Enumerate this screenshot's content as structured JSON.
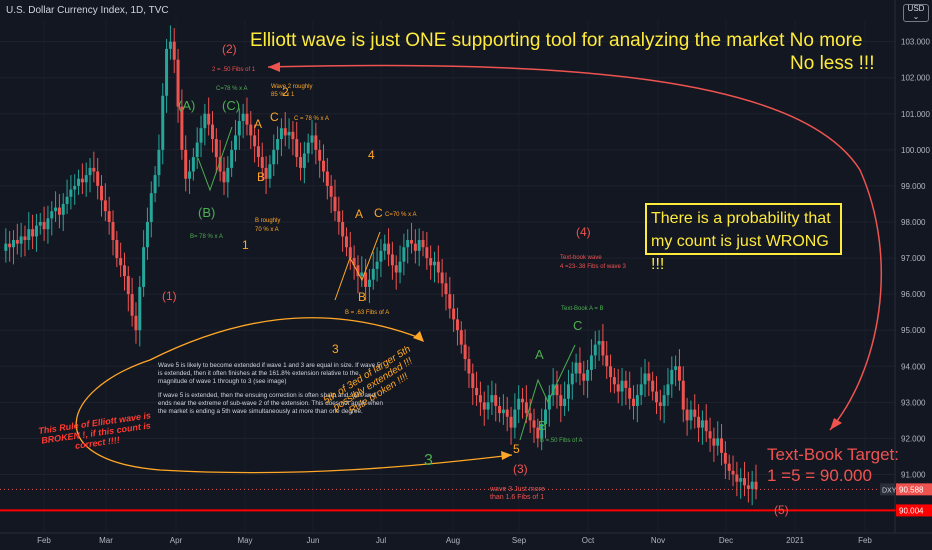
{
  "symbol_title": "U.S. Dollar Currency Index, 1D, TVC",
  "currency_label": "USD",
  "headline_1": "Elliott wave is just ONE supporting tool for analyzing the market  No more",
  "headline_2": "No less   !!!",
  "probability_note_1": "There is a probability that",
  "probability_note_2": "my count is just WRONG !!!",
  "target_line_1": "Text-Book Target:",
  "target_line_2": "1 =5 = 90.000",
  "rule_broken_note": "This Rule of Elliott wave is BROKEN !, if this count is correct !!!!",
  "fifth_note": "5th of 3ed of larger 5th possibly extended !!! Rule broken !!!!",
  "explanation_1": "Wave 5 is likely to become extended if wave 1 and 3 are equal in size. If wave 5 is extended, then it often finishes at the 161.8% extension relative to the magnitude of wave 1 through to 3 (see image)",
  "explanation_2": "If wave 5 is extended, then the ensuing correction is often sharp and swift and ends near the extreme of sub-wave 2 of the extension. This does not apply when the market is ending a 5th wave simultaneously at more than one degree.",
  "colors": {
    "background": "#131722",
    "up": "#26a69a",
    "down": "#ef5350",
    "annot_orange": "#ffa726",
    "annot_green": "#4caf50",
    "annot_red": "#ef5350",
    "headline_yellow": "#ffeb3b"
  },
  "wave_labels": [
    {
      "id": "w1",
      "text": "(1)",
      "color": "red"
    },
    {
      "id": "w2",
      "text": "(2)",
      "color": "red"
    },
    {
      "id": "w2note",
      "text": "2 = .50 Fibs of 1",
      "color": "red"
    },
    {
      "id": "a1",
      "text": "(A)",
      "color": "green"
    },
    {
      "id": "c1",
      "text": "(C)",
      "color": "green"
    },
    {
      "id": "b1",
      "text": "(B)",
      "color": "green"
    },
    {
      "id": "c1note",
      "text": "C=78 % x A",
      "color": "green"
    },
    {
      "id": "b1note",
      "text": "B= 78 % x A",
      "color": "green"
    },
    {
      "id": "wave2rough",
      "text": "Wave 2 roughly",
      "color": "orange"
    },
    {
      "id": "wave2rough2",
      "text": "85 % x 1",
      "color": "orange"
    },
    {
      "id": "w2sub",
      "text": "2",
      "color": "orange"
    },
    {
      "id": "a2",
      "text": "A",
      "color": "orange"
    },
    {
      "id": "c2",
      "text": "C",
      "color": "orange"
    },
    {
      "id": "c2note",
      "text": "C = 78 % x A",
      "color": "orange"
    },
    {
      "id": "b2",
      "text": "B",
      "color": "orange"
    },
    {
      "id": "b2note",
      "text": "B roughly",
      "color": "orange"
    },
    {
      "id": "b2note2",
      "text": "70 % x A",
      "color": "orange"
    },
    {
      "id": "w1sub",
      "text": "1",
      "color": "orange"
    },
    {
      "id": "w4sub",
      "text": "4",
      "color": "orange"
    },
    {
      "id": "a3",
      "text": "A",
      "color": "orange"
    },
    {
      "id": "c3",
      "text": "C",
      "color": "orange"
    },
    {
      "id": "c3note",
      "text": "C=70 % x A",
      "color": "orange"
    },
    {
      "id": "b3",
      "text": "B",
      "color": "orange"
    },
    {
      "id": "b3note",
      "text": "B = .63 Fibs of A",
      "color": "orange"
    },
    {
      "id": "w3sub",
      "text": "3",
      "color": "orange"
    },
    {
      "id": "w4",
      "text": "(4)",
      "color": "red"
    },
    {
      "id": "w4note",
      "text": "Text-book wave",
      "color": "red"
    },
    {
      "id": "w4note2",
      "text": "4 =23-.38 Fibs of wave 3",
      "color": "red"
    },
    {
      "id": "tbnote",
      "text": "Text-Book A = B",
      "color": "green"
    },
    {
      "id": "c4",
      "text": "C",
      "color": "green"
    },
    {
      "id": "a4",
      "text": "A",
      "color": "green"
    },
    {
      "id": "b4",
      "text": "B",
      "color": "green"
    },
    {
      "id": "b4note",
      "text": "B =.50 Fibs of A",
      "color": "green"
    },
    {
      "id": "w5sub",
      "text": "5",
      "color": "orange"
    },
    {
      "id": "w3big",
      "text": "3",
      "color": "green"
    },
    {
      "id": "w3",
      "text": "(3)",
      "color": "red"
    },
    {
      "id": "w3note",
      "text": "wave 3 Just more",
      "color": "red"
    },
    {
      "id": "w3note2",
      "text": "than 1.6 Fibs of 1",
      "color": "red"
    },
    {
      "id": "w5",
      "text": "(5)",
      "color": "red"
    }
  ],
  "chart_data": {
    "type": "candlestick",
    "title": "U.S. Dollar Currency Index, 1D, TVC",
    "x_ticks": [
      "Feb",
      "Mar",
      "Apr",
      "May",
      "Jun",
      "Jul",
      "Aug",
      "Sep",
      "Oct",
      "Nov",
      "Dec",
      "2021",
      "Feb"
    ],
    "y_ticks": [
      103.0,
      102.0,
      101.0,
      100.0,
      99.0,
      98.0,
      97.0,
      96.0,
      95.0,
      94.0,
      93.0,
      92.0,
      91.0
    ],
    "ylim": [
      89.6,
      103.6
    ],
    "last_price": {
      "symbol": "DXY",
      "value": 90.588
    },
    "target_line": 90.004,
    "close_series": [
      97.2,
      97.4,
      97.3,
      97.5,
      97.4,
      97.6,
      97.5,
      97.8,
      97.6,
      97.9,
      98.0,
      97.8,
      98.1,
      98.3,
      98.4,
      98.2,
      98.5,
      98.7,
      98.9,
      99.0,
      99.2,
      99.1,
      99.3,
      99.5,
      99.4,
      99.0,
      98.6,
      98.3,
      98.0,
      97.5,
      97.0,
      96.8,
      96.5,
      96.0,
      95.4,
      95.0,
      96.2,
      97.3,
      98.0,
      98.8,
      99.3,
      100.0,
      101.5,
      102.8,
      103.0,
      102.5,
      101.2,
      100.0,
      99.2,
      99.4,
      99.8,
      100.2,
      100.6,
      101.0,
      100.7,
      100.3,
      99.8,
      99.4,
      99.1,
      99.5,
      100.0,
      100.4,
      100.8,
      101.0,
      100.7,
      100.4,
      100.1,
      99.8,
      99.5,
      99.2,
      99.6,
      100.0,
      100.3,
      100.6,
      100.4,
      100.5,
      100.3,
      99.8,
      99.5,
      99.9,
      100.2,
      100.4,
      100.0,
      99.7,
      99.4,
      99.0,
      98.7,
      98.3,
      98.0,
      97.6,
      97.3,
      97.0,
      96.8,
      96.5,
      96.6,
      96.2,
      96.4,
      96.7,
      96.9,
      97.2,
      97.4,
      97.1,
      96.8,
      96.6,
      96.9,
      97.3,
      97.5,
      97.4,
      97.2,
      97.5,
      97.3,
      97.0,
      96.8,
      96.9,
      96.6,
      96.3,
      96.0,
      95.6,
      95.3,
      95.0,
      94.6,
      94.2,
      93.8,
      93.4,
      93.2,
      93.0,
      92.8,
      93.0,
      93.2,
      92.9,
      92.7,
      92.8,
      92.6,
      92.3,
      92.8,
      93.1,
      93.0,
      92.7,
      92.5,
      92.3,
      92.0,
      92.4,
      92.8,
      93.2,
      93.5,
      93.2,
      92.9,
      93.1,
      93.5,
      93.8,
      94.1,
      93.8,
      93.6,
      93.9,
      94.3,
      94.6,
      94.7,
      94.3,
      94.0,
      93.7,
      93.5,
      93.3,
      93.6,
      93.4,
      93.1,
      92.9,
      93.2,
      93.5,
      93.8,
      93.6,
      93.3,
      93.0,
      92.9,
      93.2,
      93.5,
      93.9,
      94.0,
      93.6,
      92.8,
      92.5,
      92.8,
      92.6,
      92.3,
      92.5,
      92.2,
      92.0,
      91.8,
      92.0,
      91.6,
      91.3,
      91.1,
      91.0,
      90.8,
      90.9,
      90.7,
      90.6,
      90.8,
      90.588
    ]
  }
}
